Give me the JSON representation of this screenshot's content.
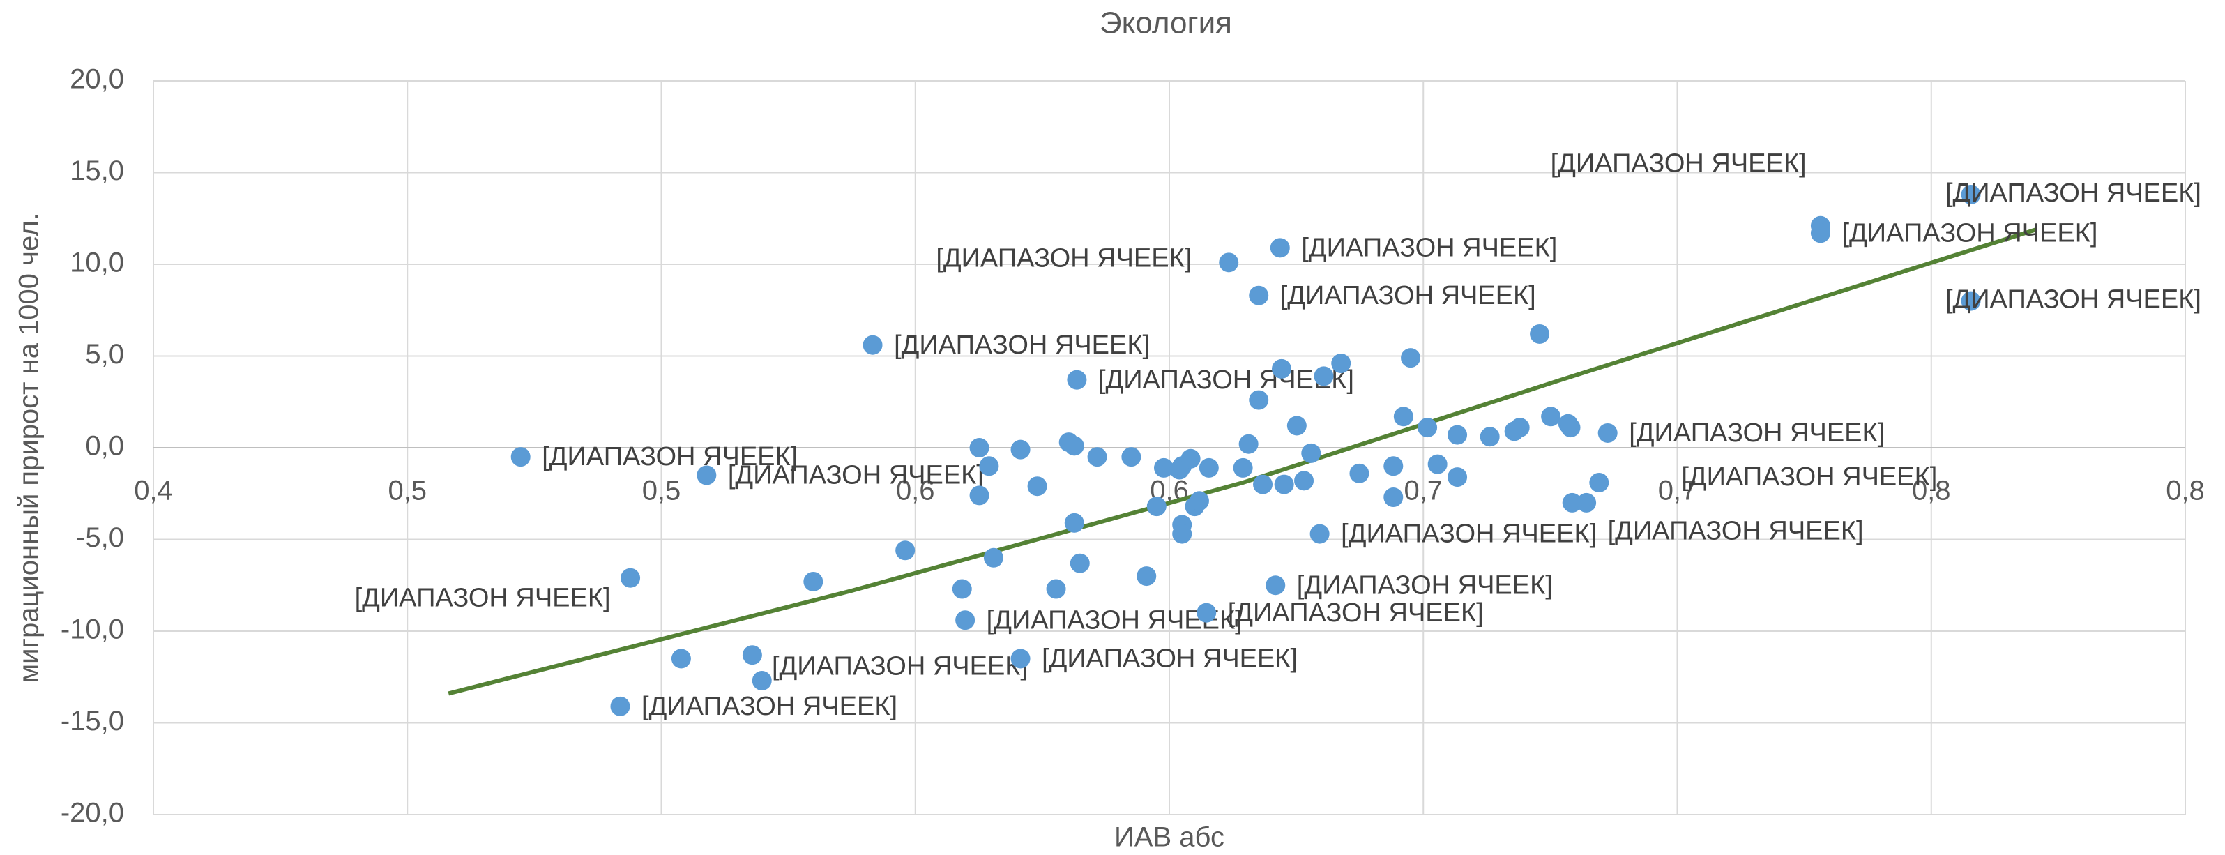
{
  "chart_data": {
    "type": "scatter",
    "title": "Экология",
    "xlabel": "ИАВ абс",
    "ylabel": "миграционный прирост на 1000 чел.",
    "color": "#5b9bd5",
    "x": [
      0.4723,
      0.5089,
      0.4939,
      0.4919,
      0.5039,
      0.5179,
      0.5198,
      0.5299,
      0.5416,
      0.548,
      0.5592,
      0.5598,
      0.5626,
      0.5626,
      0.5645,
      0.5654,
      0.5707,
      0.5707,
      0.574,
      0.5777,
      0.5802,
      0.5813,
      0.5813,
      0.5818,
      0.5824,
      0.5858,
      0.5925,
      0.5955,
      0.5975,
      0.5989,
      0.602,
      0.6025,
      0.6025,
      0.6025,
      0.6042,
      0.605,
      0.6059,
      0.6073,
      0.6078,
      0.6117,
      0.6145,
      0.6156,
      0.6176,
      0.6176,
      0.6184,
      0.6209,
      0.6218,
      0.6221,
      0.6226,
      0.6251,
      0.6265,
      0.6279,
      0.6296,
      0.6304,
      0.6338,
      0.6374,
      0.6441,
      0.6441,
      0.6461,
      0.6475,
      0.6508,
      0.6528,
      0.6567,
      0.6567,
      0.6631,
      0.6679,
      0.669,
      0.6729,
      0.6751,
      0.6785,
      0.679,
      0.6793,
      0.6821,
      0.6846,
      0.6863,
      0.7282,
      0.7282,
      0.7578,
      0.7578
    ],
    "values": [
      -0.5,
      -1.5,
      -7.1,
      -14.1,
      -11.5,
      -11.3,
      -12.7,
      -7.3,
      5.6,
      -5.6,
      -7.7,
      -9.4,
      0.0,
      -2.6,
      -1.0,
      -6.0,
      -0.1,
      -11.5,
      -2.1,
      -7.7,
      0.3,
      0.1,
      -4.1,
      3.7,
      -6.3,
      -0.5,
      -0.5,
      -7.0,
      -3.2,
      -1.1,
      -1.2,
      -1.0,
      -4.2,
      -4.7,
      -0.6,
      -3.2,
      -2.9,
      -9.0,
      -1.1,
      10.1,
      -1.1,
      0.2,
      2.6,
      8.3,
      -2.0,
      -7.5,
      10.9,
      4.3,
      -2.0,
      1.2,
      -1.8,
      -0.3,
      -4.7,
      3.9,
      4.6,
      -1.4,
      -1.0,
      -2.7,
      1.7,
      4.9,
      1.1,
      -0.9,
      0.7,
      -1.6,
      0.6,
      0.9,
      1.1,
      6.2,
      1.7,
      1.3,
      1.1,
      -3.0,
      -3.0,
      -1.9,
      0.8,
      12.1,
      11.7,
      13.8,
      8.0
    ],
    "labels": [
      "[ДИАПАЗОН ЯЧЕЕК]",
      "[ДИАПАЗОН ЯЧЕЕК]",
      "[ДИАПАЗОН ЯЧЕЕК]",
      "[ДИАПАЗОН ЯЧЕЕК]",
      null,
      null,
      "[ДИАПАЗОН ЯЧЕЕК]",
      null,
      "[ДИАПАЗОН ЯЧЕЕК]",
      null,
      null,
      "[ДИАПАЗОН ЯЧЕЕК]",
      null,
      null,
      null,
      null,
      null,
      "[ДИАПАЗОН ЯЧЕЕК]",
      null,
      null,
      null,
      null,
      null,
      "[ДИАПАЗОН ЯЧЕЕК]",
      null,
      null,
      null,
      null,
      null,
      null,
      null,
      null,
      null,
      null,
      null,
      null,
      null,
      "[ДИАПАЗОН ЯЧЕЕК]",
      null,
      "[ДИАПАЗОН ЯЧЕЕК]",
      null,
      null,
      null,
      "[ДИАПАЗОН ЯЧЕЕК]",
      null,
      "[ДИАПАЗОН ЯЧЕЕК]",
      "[ДИАПАЗОН ЯЧЕЕК]",
      null,
      null,
      null,
      null,
      null,
      "[ДИАПАЗОН ЯЧЕЕК]",
      null,
      null,
      null,
      null,
      null,
      null,
      null,
      null,
      null,
      null,
      null,
      null,
      null,
      null,
      null,
      null,
      null,
      null,
      "[ДИАПАЗОН ЯЧЕЕК]",
      null,
      "[ДИАПАЗОН ЯЧЕЕК]",
      "[ДИАПАЗОН ЯЧЕЕК]",
      "[ДИАПАЗОН ЯЧЕЕК]",
      "[ДИАПАЗОН ЯЧЕЕК]",
      "[ДИАПАЗОН ЯЧЕЕК]",
      "[ДИАПАЗОН ЯЧЕЕК]"
    ],
    "trendline": {
      "color": "#548235",
      "x": [
        0.4581,
        0.5374,
        0.6145,
        0.6771,
        0.7707
      ],
      "values": [
        -13.4,
        -7.8,
        -1.9,
        3.7,
        11.9
      ]
    },
    "xlim": [
      0.4,
      0.8
    ],
    "xticks": [
      {
        "value": 0.4,
        "label": "0,4"
      },
      {
        "value": 0.45,
        "label": "0,5"
      },
      {
        "value": 0.5,
        "label": "0,5"
      },
      {
        "value": 0.55,
        "label": "0,6"
      },
      {
        "value": 0.6,
        "label": "0,6"
      },
      {
        "value": 0.65,
        "label": "0,7"
      },
      {
        "value": 0.7,
        "label": "0,7"
      },
      {
        "value": 0.75,
        "label": "0,8"
      },
      {
        "value": 0.8,
        "label": "0,8"
      }
    ],
    "ylim": [
      -20,
      20
    ],
    "yticks": [
      {
        "value": -20,
        "label": "-20,0"
      },
      {
        "value": -15,
        "label": "-15,0"
      },
      {
        "value": -10,
        "label": "-10,0"
      },
      {
        "value": -5,
        "label": "-5,0"
      },
      {
        "value": 0,
        "label": "0,0"
      },
      {
        "value": 5,
        "label": "5,0"
      },
      {
        "value": 10,
        "label": "10,0"
      },
      {
        "value": 15,
        "label": "15,0"
      },
      {
        "value": 20,
        "label": "20,0"
      }
    ],
    "grid": true
  }
}
